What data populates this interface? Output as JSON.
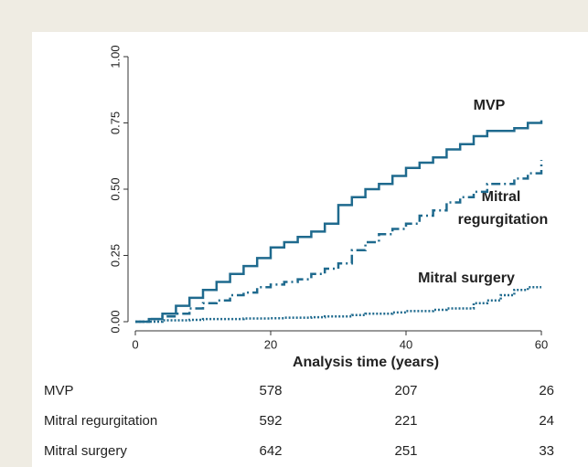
{
  "chart_data": {
    "type": "step",
    "x_label": "Analysis time (years)",
    "x": [
      0,
      2,
      4,
      6,
      8,
      10,
      12,
      14,
      16,
      18,
      20,
      22,
      24,
      26,
      28,
      30,
      32,
      34,
      36,
      38,
      40,
      42,
      44,
      46,
      48,
      50,
      52,
      54,
      56,
      58,
      60
    ],
    "series": [
      {
        "name": "MVP",
        "color": "#1f6a8e",
        "dash": "solid",
        "values": [
          0,
          0.01,
          0.03,
          0.06,
          0.09,
          0.12,
          0.15,
          0.18,
          0.21,
          0.24,
          0.28,
          0.3,
          0.32,
          0.34,
          0.37,
          0.44,
          0.47,
          0.5,
          0.52,
          0.55,
          0.58,
          0.6,
          0.62,
          0.65,
          0.67,
          0.7,
          0.72,
          0.72,
          0.73,
          0.75,
          0.76
        ]
      },
      {
        "name": "Mitral regurgitation",
        "color": "#1f6a8e",
        "dash": "dashdot",
        "values": [
          0,
          0.01,
          0.02,
          0.03,
          0.05,
          0.07,
          0.08,
          0.1,
          0.11,
          0.13,
          0.14,
          0.15,
          0.16,
          0.18,
          0.2,
          0.22,
          0.27,
          0.3,
          0.33,
          0.35,
          0.37,
          0.4,
          0.42,
          0.45,
          0.47,
          0.49,
          0.52,
          0.52,
          0.54,
          0.56,
          0.61
        ]
      },
      {
        "name": "Mitral surgery",
        "color": "#1f6a8e",
        "dash": "dot",
        "values": [
          0,
          0,
          0.005,
          0.005,
          0.007,
          0.01,
          0.01,
          0.01,
          0.012,
          0.012,
          0.013,
          0.015,
          0.015,
          0.017,
          0.02,
          0.02,
          0.025,
          0.03,
          0.03,
          0.035,
          0.04,
          0.04,
          0.045,
          0.05,
          0.05,
          0.07,
          0.08,
          0.1,
          0.12,
          0.13,
          0.13
        ]
      }
    ],
    "annotations": [
      "MVP",
      "Mitral",
      "regurgitation",
      "Mitral surgery"
    ],
    "xlim": [
      0,
      60
    ],
    "xticks": [
      0,
      20,
      40,
      60
    ],
    "ylim": [
      0,
      1
    ],
    "yticks": [
      {
        "value": 0,
        "label": "0.00"
      },
      {
        "value": 0.25,
        "label": "0.25"
      },
      {
        "value": 0.5,
        "label": "0.50"
      },
      {
        "value": 0.75,
        "label": "0.75"
      },
      {
        "value": 1,
        "label": "1.00"
      }
    ],
    "risk_table": {
      "rows": [
        {
          "label": "MVP",
          "values": [
            578,
            207,
            26
          ]
        },
        {
          "label": "Mitral regurgitation",
          "values": [
            592,
            221,
            24
          ]
        },
        {
          "label": "Mitral surgery",
          "values": [
            642,
            251,
            33
          ]
        }
      ]
    }
  }
}
